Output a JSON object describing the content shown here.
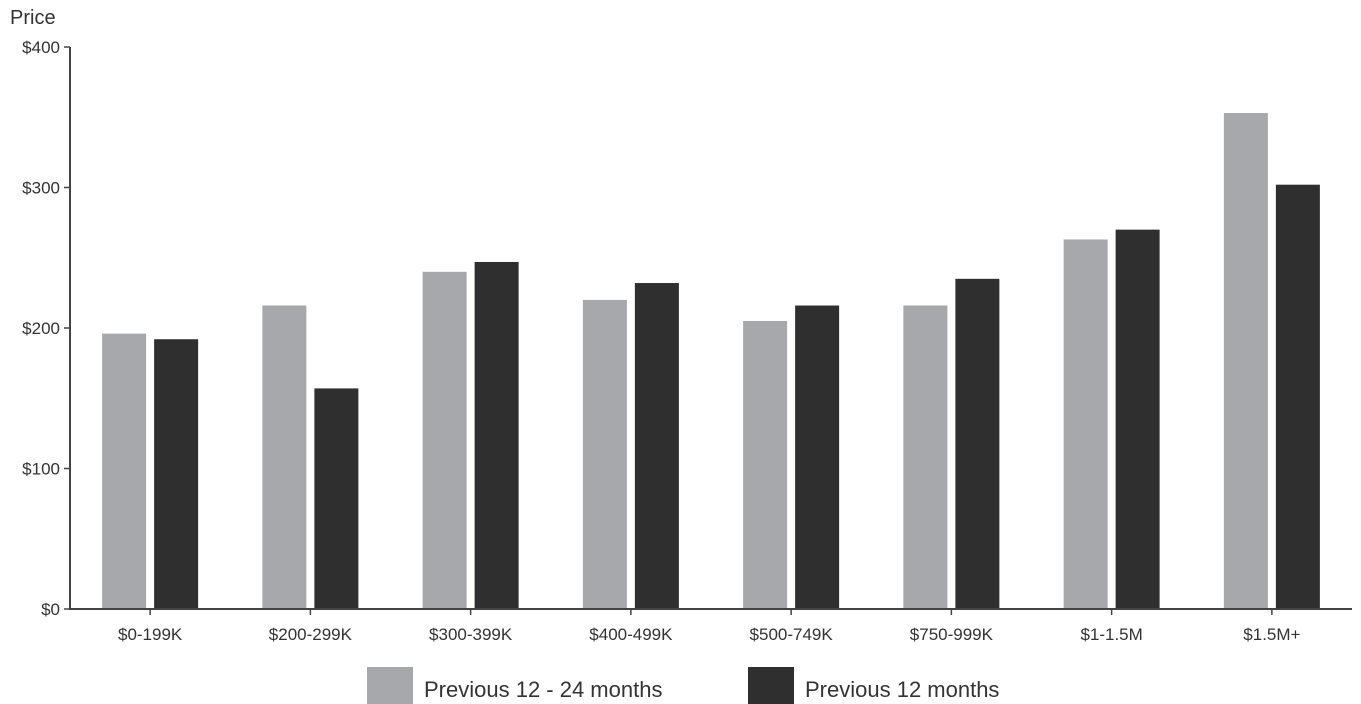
{
  "chart_data": {
    "type": "bar",
    "ylabel": "Price",
    "ylim": [
      0,
      400
    ],
    "yticks": [
      0,
      100,
      200,
      300,
      400
    ],
    "ytick_labels": [
      "$0",
      "$100",
      "$200",
      "$300",
      "$400"
    ],
    "categories": [
      "$0-199K",
      "$200-299K",
      "$300-399K",
      "$400-499K",
      "$500-749K",
      "$750-999K",
      "$1-1.5M",
      "$1.5M+"
    ],
    "series": [
      {
        "name": "Previous 12 - 24 months",
        "color": "#a7a8ab",
        "values": [
          196,
          216,
          240,
          220,
          205,
          216,
          263,
          353
        ]
      },
      {
        "name": "Previous 12 months",
        "color": "#2f2f2f",
        "values": [
          192,
          157,
          247,
          232,
          216,
          235,
          270,
          302
        ]
      }
    ],
    "grid": false,
    "legend_position": "bottom-center"
  }
}
